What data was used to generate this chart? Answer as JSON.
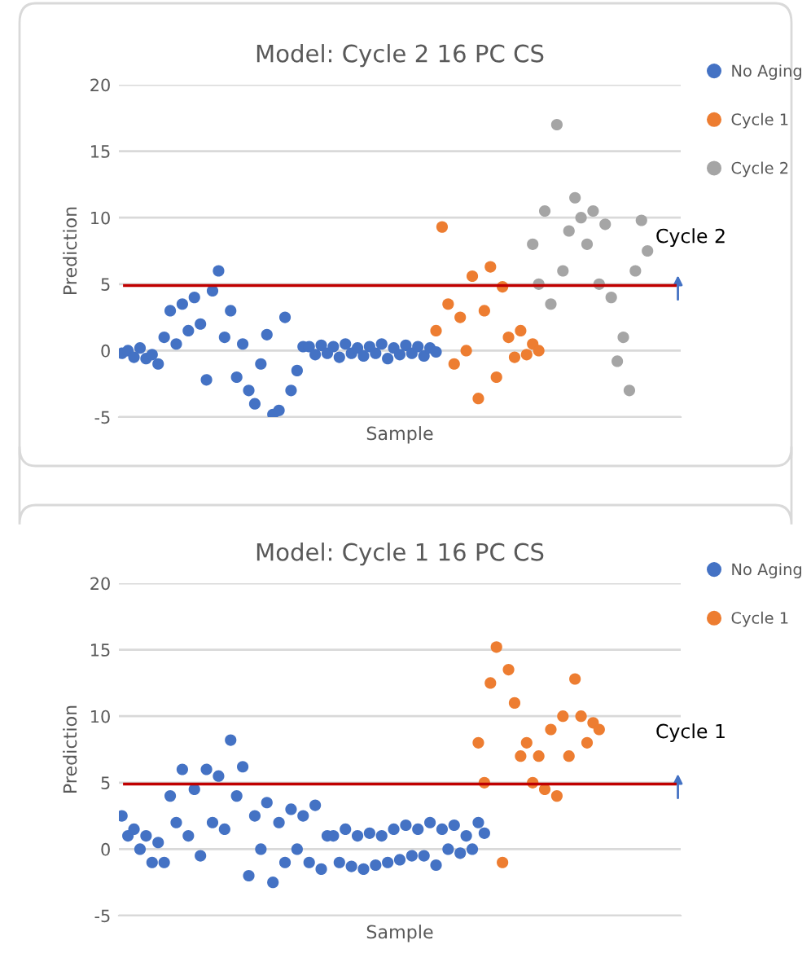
{
  "chart_data": [
    {
      "type": "scatter",
      "title": "Model: Cycle 2 16 PC CS",
      "xlabel": "Sample",
      "ylabel": "Prediction",
      "categories": [
        null,
        null,
        null,
        null,
        null,
        null,
        null,
        null,
        null,
        null,
        null,
        null,
        null,
        null,
        null,
        null,
        null,
        null,
        null,
        null,
        null,
        null,
        null,
        null,
        null,
        null,
        null,
        null,
        null,
        null,
        null,
        null,
        null,
        null,
        null,
        null,
        null,
        null,
        null,
        null,
        null,
        null,
        null,
        null,
        null,
        null,
        null,
        null,
        null,
        null,
        null,
        null,
        null,
        null,
        null,
        null,
        null,
        null,
        null,
        null,
        null,
        null,
        null,
        null,
        null,
        null,
        null,
        null,
        null,
        null,
        null,
        null,
        null,
        null,
        null,
        null,
        null,
        null,
        null,
        null,
        null,
        null,
        null,
        null,
        null,
        null,
        null,
        null,
        null,
        null,
        null,
        null,
        null
      ],
      "series": [
        {
          "name": "No Aging",
          "color": "#4472c4",
          "values": [
            -0.2,
            0,
            -0.5,
            0.2,
            -0.6,
            -0.3,
            -1,
            1,
            3,
            0.5,
            3.5,
            1.5,
            4,
            2,
            -2.2,
            4.5,
            6,
            1,
            3,
            -2,
            0.5,
            -3,
            -4,
            -1,
            1.2,
            -4.8,
            -4.5,
            2.5,
            -3,
            -1.5,
            0.3,
            0.3,
            -0.3,
            0.4,
            -0.2,
            0.3,
            -0.5,
            0.5,
            -0.2,
            0.2,
            -0.4,
            0.3,
            -0.2,
            0.5,
            -0.6,
            0.2,
            -0.3,
            0.4,
            -0.2,
            0.3,
            -0.4,
            0.2,
            -0.1,
            null,
            null,
            null,
            null,
            null,
            null,
            null,
            null,
            null,
            null,
            null,
            null,
            null,
            null,
            null,
            null,
            null,
            null,
            null,
            null,
            null,
            null,
            null,
            null,
            null,
            null,
            null,
            null,
            null,
            null,
            null,
            null,
            null,
            null,
            null,
            null,
            null,
            null,
            null,
            null
          ]
        },
        {
          "name": "Cycle 1",
          "color": "#ed7d31",
          "values": [
            null,
            null,
            null,
            null,
            null,
            null,
            null,
            null,
            null,
            null,
            null,
            null,
            null,
            null,
            null,
            null,
            null,
            null,
            null,
            null,
            null,
            null,
            null,
            null,
            null,
            null,
            null,
            null,
            null,
            null,
            null,
            null,
            null,
            null,
            null,
            null,
            null,
            null,
            null,
            null,
            null,
            null,
            null,
            null,
            null,
            null,
            null,
            null,
            null,
            null,
            null,
            null,
            1.5,
            9.3,
            3.5,
            -1,
            2.5,
            0,
            5.6,
            -3.6,
            3,
            6.3,
            -2,
            4.8,
            1,
            -0.5,
            1.5,
            -0.3,
            0.5,
            0,
            null,
            null,
            null,
            null,
            null,
            null,
            null,
            null,
            null,
            null,
            null,
            null,
            null,
            null,
            null,
            null,
            null,
            null,
            null,
            null,
            null,
            null,
            null
          ]
        },
        {
          "name": "Cycle 2",
          "color": "#a5a5a5",
          "values": [
            null,
            null,
            null,
            null,
            null,
            null,
            null,
            null,
            null,
            null,
            null,
            null,
            null,
            null,
            null,
            null,
            null,
            null,
            null,
            null,
            null,
            null,
            null,
            null,
            null,
            null,
            null,
            null,
            null,
            null,
            null,
            null,
            null,
            null,
            null,
            null,
            null,
            null,
            null,
            null,
            null,
            null,
            null,
            null,
            null,
            null,
            null,
            null,
            null,
            null,
            null,
            null,
            null,
            null,
            null,
            null,
            null,
            null,
            null,
            null,
            null,
            null,
            null,
            null,
            null,
            null,
            null,
            null,
            8,
            5,
            10.5,
            3.5,
            17,
            6,
            9,
            11.5,
            10,
            8,
            10.5,
            5,
            9.5,
            4,
            -0.8,
            1,
            -3,
            6,
            9.8,
            7.5,
            null,
            null,
            null,
            null,
            null
          ]
        }
      ],
      "ylim": [
        -5,
        20
      ],
      "yticks": [
        -5,
        0,
        5,
        10,
        15,
        20
      ],
      "grid": "y",
      "tick_labels": "y",
      "marker": "circle",
      "legend": "top right",
      "ref_lines": [
        {
          "axis": "y",
          "value": 4.9,
          "color": "#c00000"
        }
      ],
      "annotations": [
        "Cycle 2"
      ]
    },
    {
      "type": "scatter",
      "title": "Model: Cycle 1 16 PC CS",
      "xlabel": "Sample",
      "ylabel": "Prediction",
      "categories": [
        null,
        null,
        null,
        null,
        null,
        null,
        null,
        null,
        null,
        null,
        null,
        null,
        null,
        null,
        null,
        null,
        null,
        null,
        null,
        null,
        null,
        null,
        null,
        null,
        null,
        null,
        null,
        null,
        null,
        null,
        null,
        null,
        null,
        null,
        null,
        null,
        null,
        null,
        null,
        null,
        null,
        null,
        null,
        null,
        null,
        null,
        null,
        null,
        null,
        null,
        null,
        null,
        null,
        null,
        null,
        null,
        null,
        null,
        null,
        null,
        null,
        null,
        null,
        null,
        null,
        null,
        null,
        null,
        null,
        null,
        null,
        null,
        null,
        null,
        null,
        null,
        null,
        null,
        null,
        null,
        null,
        null,
        null,
        null,
        null,
        null,
        null,
        null,
        null,
        null,
        null,
        null,
        null
      ],
      "series": [
        {
          "name": "No Aging",
          "color": "#4472c4",
          "values": [
            2.5,
            1,
            1.5,
            0,
            1,
            -1,
            0.5,
            -1,
            4,
            2,
            6,
            1,
            4.5,
            -0.5,
            6,
            2,
            5.5,
            1.5,
            8.2,
            4,
            6.2,
            -2,
            2.5,
            0,
            3.5,
            -2.5,
            2,
            -1,
            3,
            0,
            2.5,
            -1,
            3.3,
            -1.5,
            1,
            1,
            -1,
            1.5,
            -1.3,
            1,
            -1.5,
            1.2,
            -1.2,
            1,
            -1,
            1.5,
            -0.8,
            1.8,
            -0.5,
            1.5,
            -0.5,
            2,
            -1.2,
            1.5,
            0,
            1.8,
            -0.3,
            1,
            0,
            2,
            1.2,
            null,
            null,
            null,
            null,
            null,
            null,
            null,
            null,
            null,
            null,
            null,
            null,
            null,
            null,
            null,
            null,
            null,
            null,
            null,
            null,
            null,
            null,
            null,
            null,
            null,
            null,
            null,
            null,
            null,
            null,
            null,
            null
          ]
        },
        {
          "name": "Cycle 1",
          "color": "#ed7d31",
          "values": [
            null,
            null,
            null,
            null,
            null,
            null,
            null,
            null,
            null,
            null,
            null,
            null,
            null,
            null,
            null,
            null,
            null,
            null,
            null,
            null,
            null,
            null,
            null,
            null,
            null,
            null,
            null,
            null,
            null,
            null,
            null,
            null,
            null,
            null,
            null,
            null,
            null,
            null,
            null,
            null,
            null,
            null,
            null,
            null,
            null,
            null,
            null,
            null,
            null,
            null,
            null,
            null,
            null,
            null,
            null,
            null,
            null,
            null,
            null,
            8,
            5,
            12.5,
            15.2,
            -1,
            13.5,
            11,
            7,
            8,
            5,
            7,
            4.5,
            9,
            4,
            10,
            7,
            12.8,
            10,
            8,
            9.5,
            9,
            null,
            null,
            null,
            null,
            null,
            null,
            null,
            null,
            null,
            null,
            null,
            null,
            null
          ]
        }
      ],
      "ylim": [
        -5,
        20
      ],
      "yticks": [
        -5,
        0,
        5,
        10,
        15,
        20
      ],
      "grid": "y",
      "tick_labels": "y",
      "marker": "circle",
      "legend": "top right",
      "ref_lines": [
        {
          "axis": "y",
          "value": 4.9,
          "color": "#c00000"
        }
      ],
      "annotations": [
        "Cycle 1"
      ]
    }
  ]
}
